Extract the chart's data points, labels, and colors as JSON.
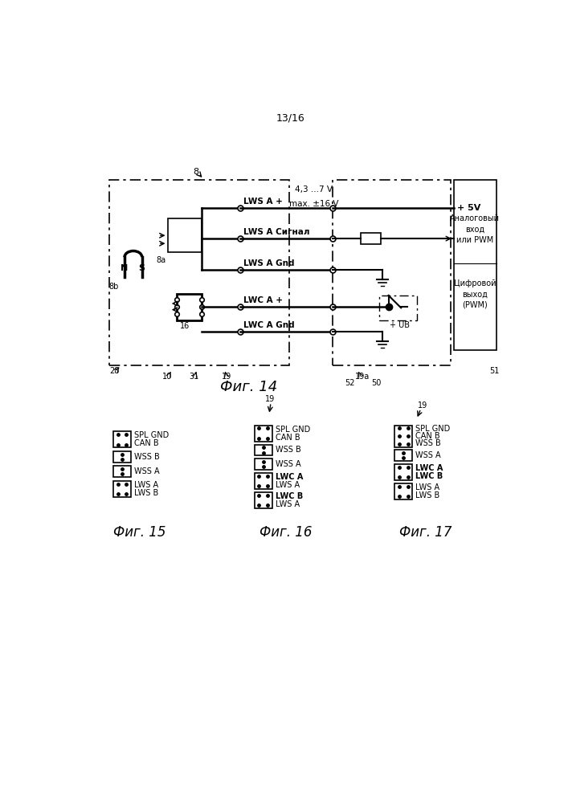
{
  "page_num": "13/16",
  "fig14_label": "Фиг. 14",
  "fig15_label": "Фиг. 15",
  "fig16_label": "Фиг. 16",
  "fig17_label": "Фиг. 17",
  "background": "#ffffff",
  "lc": "#000000",
  "voltage_text1": "4,3 ...7 V",
  "voltage_text2": "max. ±16 V",
  "label_5v": "+ 5V",
  "label_ub": "+ UB",
  "label_lws_ap": "LWS A +",
  "label_lws_asig": "LWS A Сигнал",
  "label_lws_agnd": "LWS A Gnd",
  "label_lwc_ap": "LWC A +",
  "label_lwc_agnd": "LWC A Gnd",
  "label_analog": "Аналоговый\nвход\nили PWM",
  "label_digital": "Цифровой\nвыход\n(PWM)",
  "ref_8": "8",
  "ref_8a": "8a",
  "ref_8b": "8b",
  "ref_10": "10",
  "ref_16": "16",
  "ref_19": "19",
  "ref_19a": "19a",
  "ref_28": "28",
  "ref_31": "31",
  "ref_50": "50",
  "ref_51": "51",
  "ref_52": "52"
}
